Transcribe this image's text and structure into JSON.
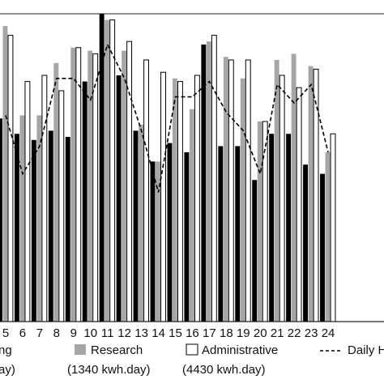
{
  "chart_data": {
    "type": "bar",
    "categories": [
      "5",
      "6",
      "7",
      "8",
      "9",
      "10",
      "11",
      "12",
      "13",
      "14",
      "15",
      "16",
      "17",
      "18",
      "19",
      "20",
      "21",
      "22",
      "23",
      "24"
    ],
    "ylim": [
      0,
      1
    ],
    "grid": false,
    "series": [
      {
        "name": "Teaching",
        "color": "#000000",
        "values": [
          0.66,
          0.61,
          0.59,
          0.62,
          0.6,
          0.78,
          1.0,
          0.8,
          0.62,
          0.52,
          0.58,
          0.55,
          0.9,
          0.57,
          0.57,
          0.46,
          0.61,
          0.61,
          0.51,
          0.48
        ]
      },
      {
        "name": "Research",
        "color": "#a6a6a6",
        "values": [
          0.96,
          0.67,
          0.67,
          0.84,
          0.89,
          0.88,
          0.98,
          0.88,
          0.64,
          0.52,
          0.79,
          0.69,
          0.91,
          0.86,
          0.79,
          0.65,
          0.85,
          0.87,
          0.83,
          0.55
        ]
      },
      {
        "name": "Administrative",
        "color": "#ffffff",
        "values": [
          0.93,
          0.78,
          0.8,
          0.75,
          0.89,
          0.87,
          0.98,
          0.91,
          0.85,
          0.81,
          0.78,
          0.8,
          0.93,
          0.85,
          0.85,
          0.65,
          0.8,
          0.76,
          0.82,
          0.61
        ]
      }
    ],
    "line": {
      "name": "Daily H",
      "style": "dashed",
      "values": [
        0.67,
        0.48,
        0.57,
        0.79,
        0.79,
        0.72,
        0.9,
        0.79,
        0.62,
        0.42,
        0.73,
        0.73,
        0.78,
        0.68,
        0.62,
        0.48,
        0.77,
        0.71,
        0.77,
        0.55
      ]
    },
    "legend": {
      "position": "bottom",
      "items": [
        {
          "label": "ng",
          "sublabel": "ay)"
        },
        {
          "label": "Research",
          "sublabel": "(1340 kwh.day)"
        },
        {
          "label": "Administrative",
          "sublabel": "(4430 kwh.day)"
        },
        {
          "label": "Daily H",
          "sublabel": ""
        }
      ]
    }
  }
}
